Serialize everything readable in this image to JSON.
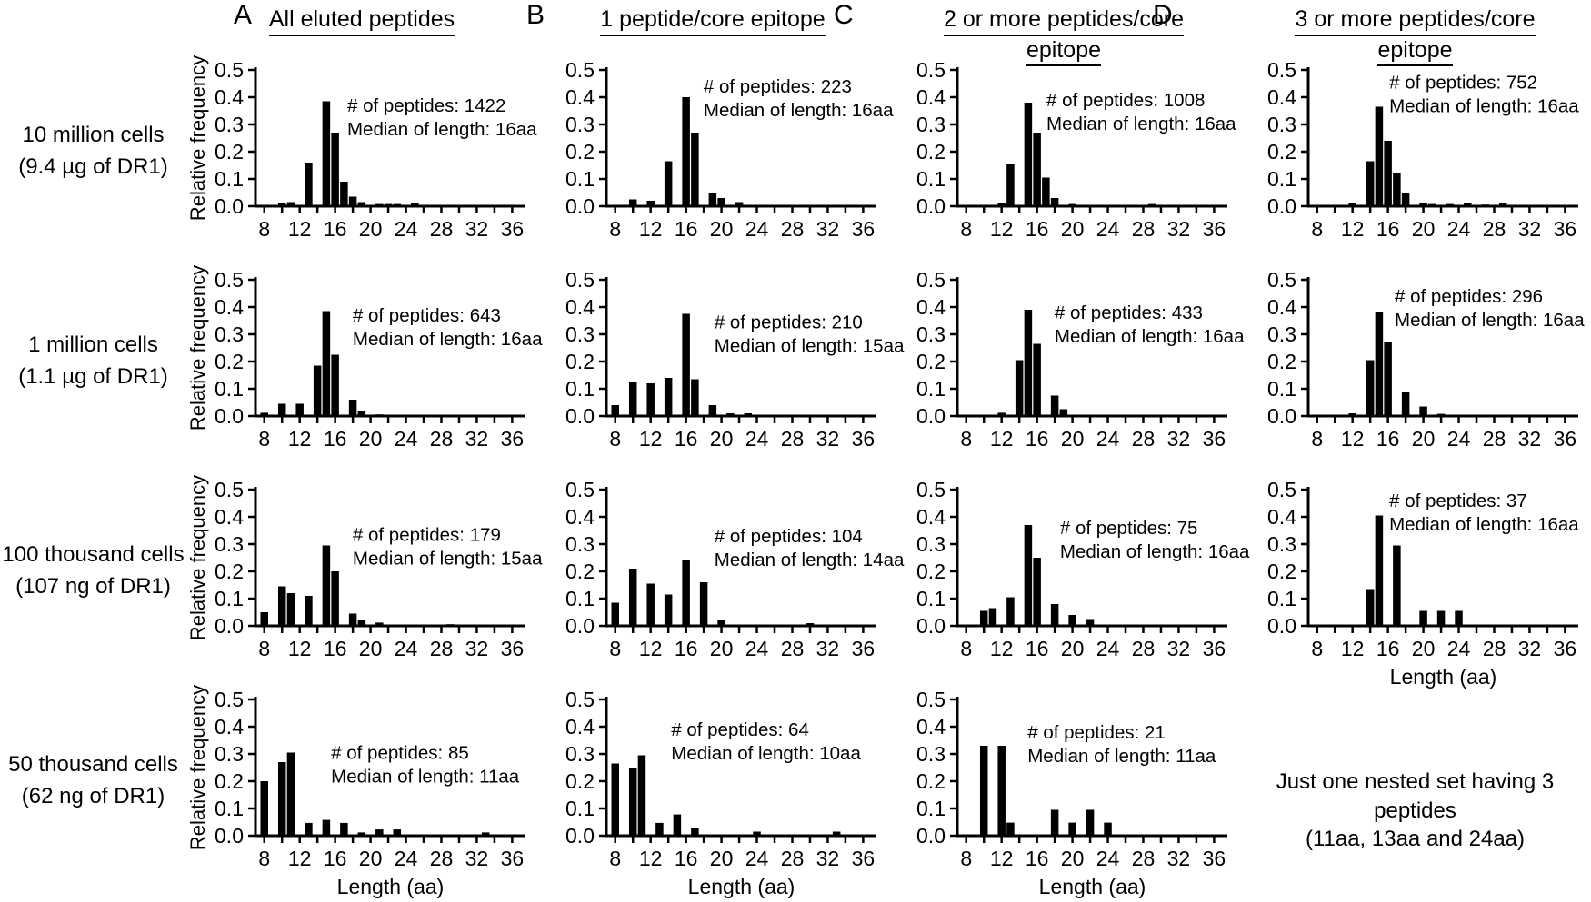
{
  "figure": {
    "background": "#ffffff",
    "ink": "#000000",
    "ylabel": "Relative frequency",
    "xlabel": "Length (aa)",
    "yticks": [
      "0.0",
      "0.1",
      "0.2",
      "0.3",
      "0.4",
      "0.5"
    ],
    "xtick_labels": [
      8,
      12,
      16,
      20,
      24,
      28,
      32,
      36
    ],
    "columns": [
      {
        "letter": "A",
        "title_lines": [
          "All eluted peptides"
        ]
      },
      {
        "letter": "B",
        "title_lines": [
          "1 peptide/core epitope"
        ]
      },
      {
        "letter": "C",
        "title_lines": [
          "2 or more peptides/core",
          "epitope"
        ]
      },
      {
        "letter": "D",
        "title_lines": [
          "3 or more peptides/core",
          "epitope"
        ]
      }
    ],
    "rows": [
      {
        "label_lines": [
          "10 million cells",
          "(9.4 µg of DR1)"
        ]
      },
      {
        "label_lines": [
          "1 million cells",
          "(1.1 µg of DR1)"
        ]
      },
      {
        "label_lines": [
          "100 thousand cells",
          "(107 ng of DR1)"
        ]
      },
      {
        "label_lines": [
          "50 thousand cells",
          "(62 ng of DR1)"
        ]
      }
    ],
    "note_lines": [
      "Just one nested set having 3",
      "peptides",
      "(11aa, 13aa and 24aa)"
    ]
  },
  "chart_data": [
    {
      "id": "A1",
      "type": "bar",
      "panel": "A",
      "row": "10 million cells (9.4 µg of DR1)",
      "n_peptides": 1422,
      "median_length_aa": 16,
      "annotation_lines": [
        "# of peptides: 1422",
        "Median of length: 16aa"
      ],
      "ann_x": 0.34,
      "ann_y": 0.2,
      "xlim": [
        7,
        37.5
      ],
      "ylim": [
        0,
        0.5
      ],
      "show_ylabel": true,
      "show_xlabel": false,
      "bars": [
        [
          10,
          0.01
        ],
        [
          11,
          0.015
        ],
        [
          13,
          0.16
        ],
        [
          15,
          0.385
        ],
        [
          16,
          0.27
        ],
        [
          17,
          0.09
        ],
        [
          18,
          0.035
        ],
        [
          19,
          0.015
        ],
        [
          21,
          0.008
        ],
        [
          22,
          0.008
        ],
        [
          23,
          0.008
        ],
        [
          25,
          0.01
        ]
      ]
    },
    {
      "id": "B1",
      "type": "bar",
      "panel": "B",
      "row": "10 million cells (9.4 µg of DR1)",
      "n_peptides": 223,
      "median_length_aa": 16,
      "annotation_lines": [
        "# of peptides: 223",
        "Median of length: 16aa"
      ],
      "ann_x": 0.36,
      "ann_y": 0.06,
      "xlim": [
        7,
        37.5
      ],
      "ylim": [
        0,
        0.5
      ],
      "show_ylabel": false,
      "show_xlabel": false,
      "bars": [
        [
          8,
          0.005
        ],
        [
          10,
          0.025
        ],
        [
          12,
          0.02
        ],
        [
          14,
          0.165
        ],
        [
          16,
          0.4
        ],
        [
          17,
          0.27
        ],
        [
          19,
          0.05
        ],
        [
          20,
          0.03
        ],
        [
          22,
          0.015
        ],
        [
          25,
          0.005
        ]
      ]
    },
    {
      "id": "C1",
      "type": "bar",
      "panel": "C",
      "row": "10 million cells (9.4 µg of DR1)",
      "n_peptides": 1008,
      "median_length_aa": 16,
      "annotation_lines": [
        "# of peptides: 1008",
        "Median of length: 16aa"
      ],
      "ann_x": 0.33,
      "ann_y": 0.16,
      "xlim": [
        7,
        37.5
      ],
      "ylim": [
        0,
        0.5
      ],
      "show_ylabel": false,
      "show_xlabel": false,
      "bars": [
        [
          12,
          0.01
        ],
        [
          13,
          0.155
        ],
        [
          15,
          0.38
        ],
        [
          16,
          0.27
        ],
        [
          17,
          0.105
        ],
        [
          18,
          0.03
        ],
        [
          20,
          0.008
        ],
        [
          23,
          0.005
        ],
        [
          25,
          0.005
        ],
        [
          29,
          0.008
        ]
      ]
    },
    {
      "id": "D1",
      "type": "bar",
      "panel": "D",
      "row": "10 million cells (9.4 µg of DR1)",
      "n_peptides": 752,
      "median_length_aa": 16,
      "annotation_lines": [
        "# of peptides: 752",
        "Median of length: 16aa"
      ],
      "ann_x": 0.3,
      "ann_y": 0.03,
      "xlim": [
        7,
        37.5
      ],
      "ylim": [
        0,
        0.5
      ],
      "show_ylabel": false,
      "show_xlabel": false,
      "bars": [
        [
          12,
          0.01
        ],
        [
          14,
          0.165
        ],
        [
          15,
          0.365
        ],
        [
          16,
          0.24
        ],
        [
          17,
          0.12
        ],
        [
          18,
          0.05
        ],
        [
          20,
          0.012
        ],
        [
          21,
          0.008
        ],
        [
          23,
          0.008
        ],
        [
          25,
          0.012
        ],
        [
          27,
          0.006
        ],
        [
          29,
          0.012
        ],
        [
          31,
          0.005
        ]
      ]
    },
    {
      "id": "A2",
      "type": "bar",
      "panel": "A",
      "row": "1 million cells (1.1 µg of DR1)",
      "n_peptides": 643,
      "median_length_aa": 16,
      "annotation_lines": [
        "# of peptides: 643",
        "Median of length: 16aa"
      ],
      "ann_x": 0.36,
      "ann_y": 0.2,
      "xlim": [
        7,
        37.5
      ],
      "ylim": [
        0,
        0.5
      ],
      "show_ylabel": true,
      "show_xlabel": false,
      "bars": [
        [
          8,
          0.012
        ],
        [
          10,
          0.045
        ],
        [
          12,
          0.045
        ],
        [
          14,
          0.185
        ],
        [
          15,
          0.385
        ],
        [
          16,
          0.225
        ],
        [
          18,
          0.06
        ],
        [
          19,
          0.02
        ],
        [
          21,
          0.006
        ]
      ]
    },
    {
      "id": "B2",
      "type": "bar",
      "panel": "B",
      "row": "1 million cells (1.1 µg of DR1)",
      "n_peptides": 210,
      "median_length_aa": 15,
      "annotation_lines": [
        "# of peptides: 210",
        "Median of length: 15aa"
      ],
      "ann_x": 0.4,
      "ann_y": 0.25,
      "xlim": [
        7,
        37.5
      ],
      "ylim": [
        0,
        0.5
      ],
      "show_ylabel": false,
      "show_xlabel": false,
      "bars": [
        [
          8,
          0.04
        ],
        [
          10,
          0.125
        ],
        [
          12,
          0.12
        ],
        [
          14,
          0.14
        ],
        [
          16,
          0.375
        ],
        [
          17,
          0.135
        ],
        [
          19,
          0.04
        ],
        [
          21,
          0.01
        ],
        [
          23,
          0.01
        ]
      ]
    },
    {
      "id": "C2",
      "type": "bar",
      "panel": "C",
      "row": "1 million cells (1.1 µg of DR1)",
      "n_peptides": 433,
      "median_length_aa": 16,
      "annotation_lines": [
        "# of peptides: 433",
        "Median of length: 16aa"
      ],
      "ann_x": 0.36,
      "ann_y": 0.18,
      "xlim": [
        7,
        37.5
      ],
      "ylim": [
        0,
        0.5
      ],
      "show_ylabel": false,
      "show_xlabel": false,
      "bars": [
        [
          10,
          0.005
        ],
        [
          12,
          0.012
        ],
        [
          14,
          0.205
        ],
        [
          15,
          0.39
        ],
        [
          16,
          0.265
        ],
        [
          18,
          0.075
        ],
        [
          19,
          0.025
        ],
        [
          22,
          0.005
        ]
      ]
    },
    {
      "id": "D2",
      "type": "bar",
      "panel": "D",
      "row": "1 million cells (1.1 µg of DR1)",
      "n_peptides": 296,
      "median_length_aa": 16,
      "annotation_lines": [
        "# of peptides: 296",
        "Median of length: 16aa"
      ],
      "ann_x": 0.32,
      "ann_y": 0.06,
      "xlim": [
        7,
        37.5
      ],
      "ylim": [
        0,
        0.5
      ],
      "show_ylabel": false,
      "show_xlabel": false,
      "bars": [
        [
          12,
          0.01
        ],
        [
          14,
          0.205
        ],
        [
          15,
          0.38
        ],
        [
          16,
          0.27
        ],
        [
          18,
          0.09
        ],
        [
          20,
          0.035
        ],
        [
          22,
          0.008
        ]
      ]
    },
    {
      "id": "A3",
      "type": "bar",
      "panel": "A",
      "row": "100 thousand cells (107 ng of DR1)",
      "n_peptides": 179,
      "median_length_aa": 15,
      "annotation_lines": [
        "# of peptides: 179",
        "Median of length: 15aa"
      ],
      "ann_x": 0.36,
      "ann_y": 0.27,
      "xlim": [
        7,
        37.5
      ],
      "ylim": [
        0,
        0.5
      ],
      "show_ylabel": true,
      "show_xlabel": false,
      "bars": [
        [
          8,
          0.05
        ],
        [
          10,
          0.145
        ],
        [
          11,
          0.12
        ],
        [
          13,
          0.11
        ],
        [
          15,
          0.295
        ],
        [
          16,
          0.2
        ],
        [
          18,
          0.045
        ],
        [
          19,
          0.02
        ],
        [
          21,
          0.012
        ],
        [
          29,
          0.006
        ]
      ]
    },
    {
      "id": "B3",
      "type": "bar",
      "panel": "B",
      "row": "100 thousand cells (107 ng of DR1)",
      "n_peptides": 104,
      "median_length_aa": 14,
      "annotation_lines": [
        "# of peptides: 104",
        "Median of length: 14aa"
      ],
      "ann_x": 0.4,
      "ann_y": 0.28,
      "xlim": [
        7,
        37.5
      ],
      "ylim": [
        0,
        0.5
      ],
      "show_ylabel": false,
      "show_xlabel": false,
      "bars": [
        [
          8,
          0.085
        ],
        [
          10,
          0.21
        ],
        [
          12,
          0.155
        ],
        [
          14,
          0.115
        ],
        [
          16,
          0.24
        ],
        [
          18,
          0.16
        ],
        [
          20,
          0.02
        ],
        [
          30,
          0.01
        ]
      ]
    },
    {
      "id": "C3",
      "type": "bar",
      "panel": "C",
      "row": "100 thousand cells (107 ng of DR1)",
      "n_peptides": 75,
      "median_length_aa": 16,
      "annotation_lines": [
        "# of peptides: 75",
        "Median of length: 16aa"
      ],
      "ann_x": 0.38,
      "ann_y": 0.22,
      "xlim": [
        7,
        37.5
      ],
      "ylim": [
        0,
        0.5
      ],
      "show_ylabel": false,
      "show_xlabel": false,
      "bars": [
        [
          10,
          0.055
        ],
        [
          11,
          0.065
        ],
        [
          13,
          0.105
        ],
        [
          15,
          0.37
        ],
        [
          16,
          0.25
        ],
        [
          18,
          0.08
        ],
        [
          20,
          0.04
        ],
        [
          22,
          0.025
        ]
      ]
    },
    {
      "id": "D3",
      "type": "bar",
      "panel": "D",
      "row": "100 thousand cells (107 ng of DR1)",
      "n_peptides": 37,
      "median_length_aa": 16,
      "annotation_lines": [
        "# of peptides: 37",
        "Median of length: 16aa"
      ],
      "ann_x": 0.3,
      "ann_y": 0.02,
      "xlim": [
        7,
        37.5
      ],
      "ylim": [
        0,
        0.5
      ],
      "show_ylabel": false,
      "show_xlabel": true,
      "bars": [
        [
          14,
          0.135
        ],
        [
          15,
          0.405
        ],
        [
          17,
          0.295
        ],
        [
          20,
          0.055
        ],
        [
          22,
          0.055
        ],
        [
          24,
          0.055
        ]
      ]
    },
    {
      "id": "A4",
      "type": "bar",
      "panel": "A",
      "row": "50 thousand cells (62 ng of DR1)",
      "n_peptides": 85,
      "median_length_aa": 11,
      "annotation_lines": [
        "# of peptides: 85",
        "Median of length: 11aa"
      ],
      "ann_x": 0.28,
      "ann_y": 0.33,
      "xlim": [
        7,
        37.5
      ],
      "ylim": [
        0,
        0.5
      ],
      "show_ylabel": true,
      "show_xlabel": true,
      "bars": [
        [
          8,
          0.2
        ],
        [
          10,
          0.27
        ],
        [
          11,
          0.305
        ],
        [
          13,
          0.047
        ],
        [
          15,
          0.058
        ],
        [
          17,
          0.047
        ],
        [
          19,
          0.012
        ],
        [
          21,
          0.023
        ],
        [
          23,
          0.023
        ],
        [
          33,
          0.012
        ]
      ]
    },
    {
      "id": "B4",
      "type": "bar",
      "panel": "B",
      "row": "50 thousand cells (62 ng of DR1)",
      "n_peptides": 64,
      "median_length_aa": 10,
      "annotation_lines": [
        "# of peptides: 64",
        "Median of length: 10aa"
      ],
      "ann_x": 0.24,
      "ann_y": 0.16,
      "xlim": [
        7,
        37.5
      ],
      "ylim": [
        0,
        0.5
      ],
      "show_ylabel": false,
      "show_xlabel": true,
      "bars": [
        [
          8,
          0.265
        ],
        [
          10,
          0.25
        ],
        [
          11,
          0.295
        ],
        [
          13,
          0.047
        ],
        [
          15,
          0.078
        ],
        [
          17,
          0.03
        ],
        [
          24,
          0.015
        ],
        [
          33,
          0.015
        ]
      ]
    },
    {
      "id": "C4",
      "type": "bar",
      "panel": "C",
      "row": "50 thousand cells (62 ng of DR1)",
      "n_peptides": 21,
      "median_length_aa": 11,
      "annotation_lines": [
        "# of peptides: 21",
        "Median of length: 11aa"
      ],
      "ann_x": 0.26,
      "ann_y": 0.18,
      "xlim": [
        7,
        37.5
      ],
      "ylim": [
        0,
        0.5
      ],
      "show_ylabel": false,
      "show_xlabel": true,
      "bars": [
        [
          10,
          0.33
        ],
        [
          12,
          0.33
        ],
        [
          13,
          0.048
        ],
        [
          18,
          0.095
        ],
        [
          20,
          0.048
        ],
        [
          22,
          0.095
        ],
        [
          24,
          0.048
        ]
      ]
    }
  ]
}
